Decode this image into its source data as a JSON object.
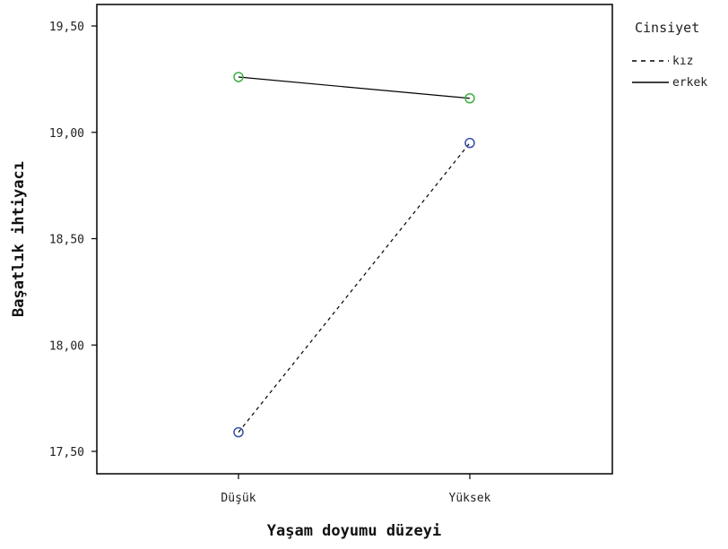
{
  "chart_data": {
    "type": "line",
    "title": "",
    "xlabel": "Yaşam doyumu düzeyi",
    "ylabel": "Başatlık ihtiyacı",
    "categories": [
      "Düşük",
      "Yüksek"
    ],
    "ylim": [
      17.5,
      19.5
    ],
    "y_ticks": [
      17.5,
      18.0,
      18.5,
      19.0,
      19.5
    ],
    "y_tick_labels": [
      "17,50",
      "18,00",
      "18,50",
      "19,00",
      "19,50"
    ],
    "grid": false,
    "legend": {
      "title": "Cinsiyet",
      "placement": "outside-top-right"
    },
    "series": [
      {
        "name": "kız",
        "values": [
          17.59,
          18.95
        ],
        "line_style": "dashed",
        "marker_color": "#3850a8"
      },
      {
        "name": "erkek",
        "values": [
          19.26,
          19.16
        ],
        "line_style": "solid",
        "marker_color": "#3cb043"
      }
    ]
  }
}
